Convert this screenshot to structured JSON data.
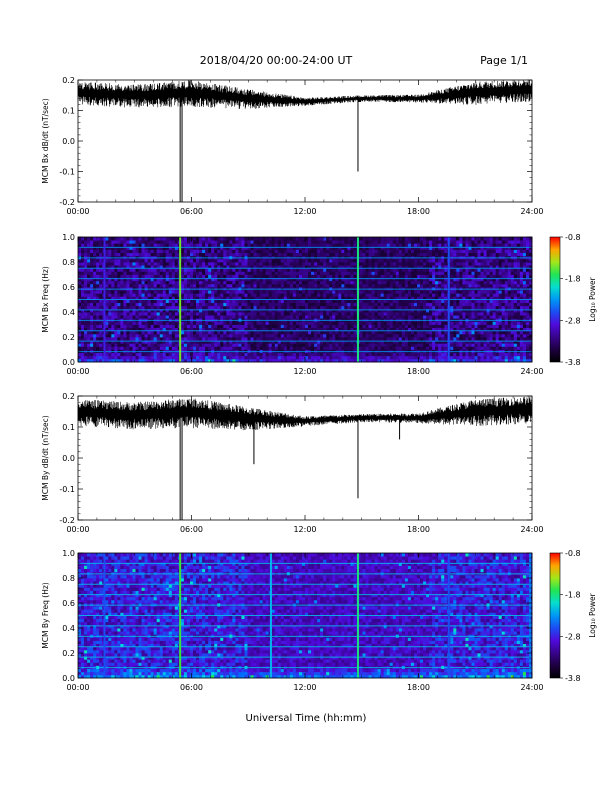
{
  "header": {
    "title": "2018/04/20  00:00-24:00 UT",
    "page": "Page 1/1"
  },
  "xlabel": "Universal Time (hh:mm)",
  "chart_data": [
    {
      "type": "line",
      "ylabel": "MCM Bx dB/dt (nT/sec)",
      "xlim": [
        0,
        24
      ],
      "ylim": [
        -0.2,
        0.2
      ],
      "xticks": [
        "00:00",
        "06:00",
        "12:00",
        "18:00",
        "24:00"
      ],
      "yticks": [
        "-0.2",
        "-0.1",
        "0.0",
        "0.1",
        "0.2"
      ],
      "baseline": {
        "x": [
          0,
          3,
          6,
          9,
          12,
          15,
          18,
          21,
          24
        ],
        "y": [
          0.16,
          0.15,
          0.16,
          0.14,
          0.13,
          0.14,
          0.14,
          0.16,
          0.17
        ]
      },
      "noise_amplitude": {
        "x": [
          0,
          3,
          6,
          9,
          12,
          15,
          18,
          21,
          24
        ],
        "y": [
          0.035,
          0.035,
          0.04,
          0.03,
          0.012,
          0.01,
          0.012,
          0.035,
          0.035
        ]
      },
      "spikes": [
        {
          "x": 5.4,
          "y": -0.2
        },
        {
          "x": 5.5,
          "y": -0.2
        },
        {
          "x": 14.8,
          "y": -0.1
        }
      ]
    },
    {
      "type": "heatmap",
      "ylabel": "MCM Bx Freq (Hz)",
      "colorbar_label": "Log₁₀ Power",
      "xlim": [
        0,
        24
      ],
      "ylim": [
        0,
        1.0
      ],
      "xticks": [
        "00:00",
        "06:00",
        "12:00",
        "18:00",
        "24:00"
      ],
      "yticks": [
        "0.0",
        "0.2",
        "0.4",
        "0.6",
        "0.8",
        "1.0"
      ],
      "clim": [
        -3.8,
        -0.8
      ],
      "cticks": [
        "-0.8",
        "-1.8",
        "-2.8",
        "-3.8"
      ],
      "harmonic_lines_hz": [
        0.083,
        0.167,
        0.25,
        0.333,
        0.417,
        0.5,
        0.583,
        0.667,
        0.75,
        0.833,
        0.917
      ],
      "vertical_lines": [
        {
          "x": 1.4,
          "level": -2.8
        },
        {
          "x": 5.4,
          "level": -1.5
        },
        {
          "x": 14.8,
          "level": -1.8
        },
        {
          "x": 19.6,
          "level": -2.6
        }
      ]
    },
    {
      "type": "line",
      "ylabel": "MCM By dB/dt (nT/sec)",
      "xlim": [
        0,
        24
      ],
      "ylim": [
        -0.2,
        0.2
      ],
      "xticks": [
        "00:00",
        "06:00",
        "12:00",
        "18:00",
        "24:00"
      ],
      "yticks": [
        "-0.2",
        "-0.1",
        "0.0",
        "0.1",
        "0.2"
      ],
      "baseline": {
        "x": [
          0,
          3,
          6,
          9,
          12,
          15,
          18,
          21,
          24
        ],
        "y": [
          0.15,
          0.14,
          0.15,
          0.13,
          0.12,
          0.13,
          0.13,
          0.15,
          0.16
        ]
      },
      "noise_amplitude": {
        "x": [
          0,
          3,
          6,
          9,
          12,
          15,
          18,
          21,
          24
        ],
        "y": [
          0.04,
          0.04,
          0.045,
          0.035,
          0.015,
          0.012,
          0.015,
          0.04,
          0.04
        ]
      },
      "spikes": [
        {
          "x": 5.4,
          "y": -0.2
        },
        {
          "x": 5.5,
          "y": -0.2
        },
        {
          "x": 9.3,
          "y": -0.02
        },
        {
          "x": 14.8,
          "y": -0.13
        },
        {
          "x": 17.0,
          "y": 0.06
        }
      ]
    },
    {
      "type": "heatmap",
      "ylabel": "MCM By Freq (Hz)",
      "colorbar_label": "Log₁₀ Power",
      "xlim": [
        0,
        24
      ],
      "ylim": [
        0,
        1.0
      ],
      "xticks": [
        "00:00",
        "06:00",
        "12:00",
        "18:00",
        "24:00"
      ],
      "yticks": [
        "0.0",
        "0.2",
        "0.4",
        "0.6",
        "0.8",
        "1.0"
      ],
      "clim": [
        -3.8,
        -0.8
      ],
      "cticks": [
        "-0.8",
        "-1.8",
        "-2.8",
        "-3.8"
      ],
      "harmonic_lines_hz": [
        0.083,
        0.167,
        0.25,
        0.333,
        0.417,
        0.5,
        0.583,
        0.667,
        0.75,
        0.833,
        0.917
      ],
      "vertical_lines": [
        {
          "x": 1.4,
          "level": -2.6
        },
        {
          "x": 5.4,
          "level": -1.6
        },
        {
          "x": 10.2,
          "level": -2.2
        },
        {
          "x": 14.8,
          "level": -1.8
        },
        {
          "x": 19.6,
          "level": -2.6
        },
        {
          "x": 23.9,
          "level": -2.4
        }
      ]
    }
  ]
}
